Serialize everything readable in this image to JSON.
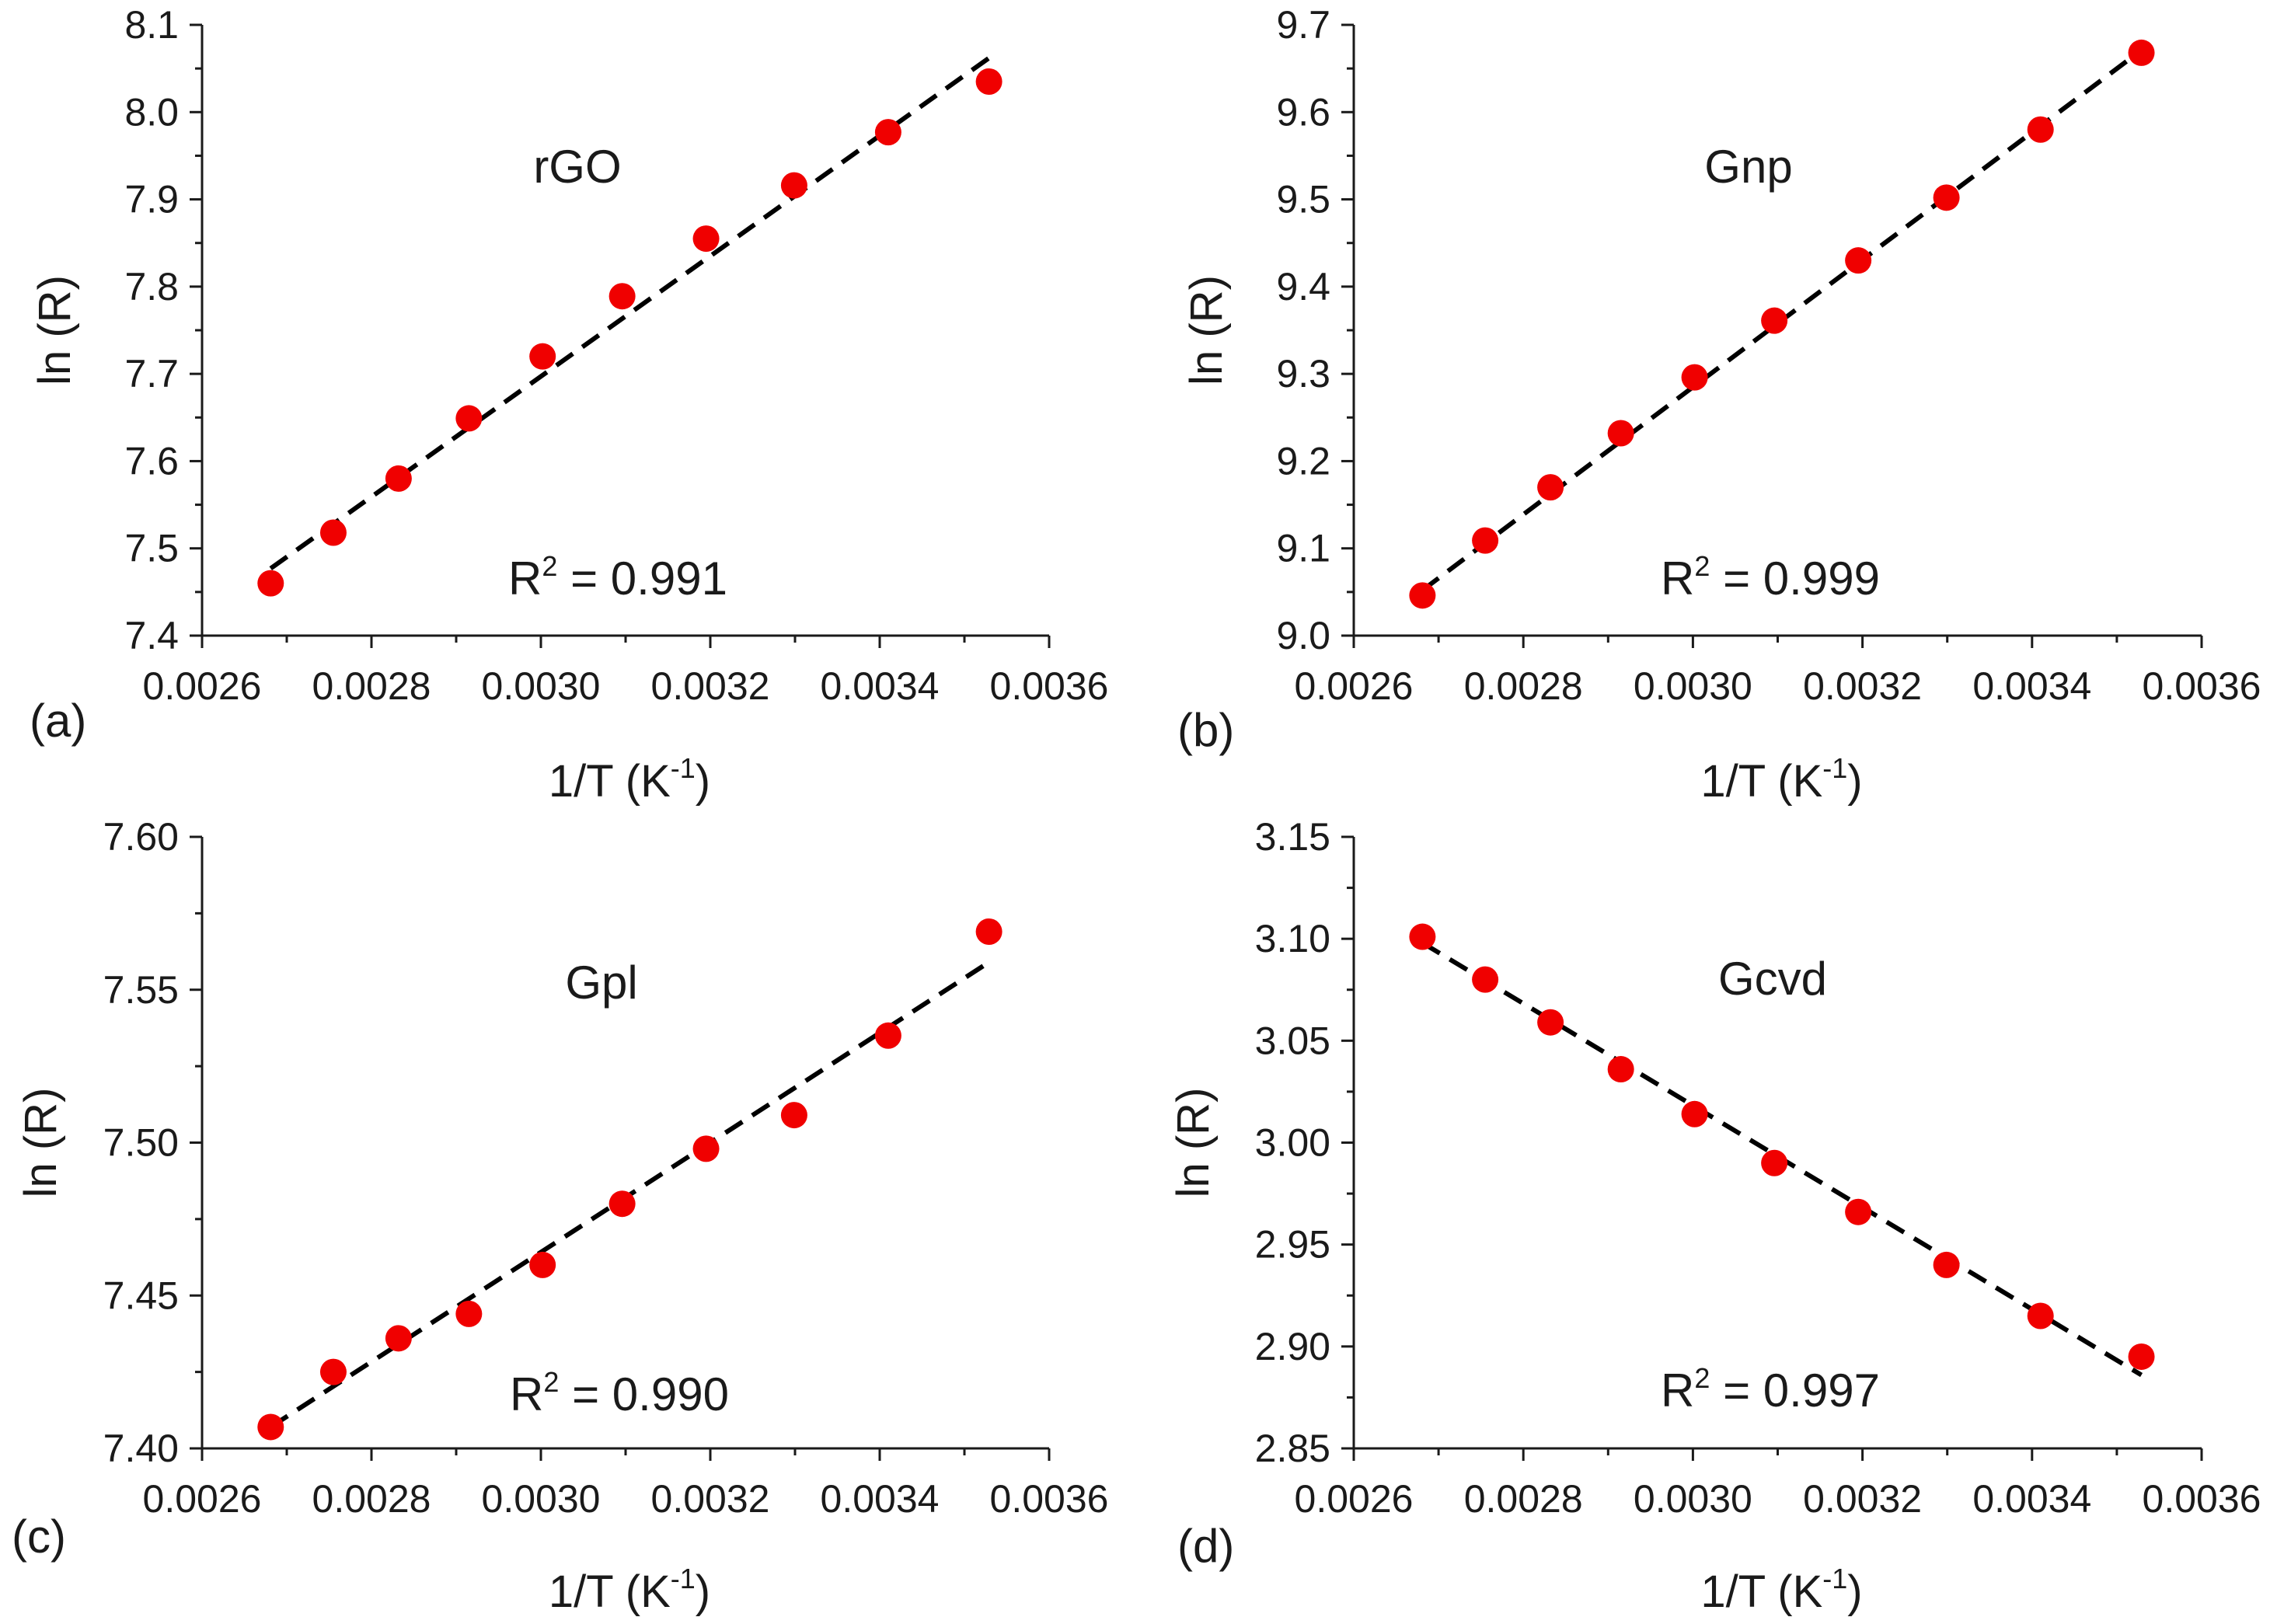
{
  "colors": {
    "point": "#f00000",
    "fit": "#000000",
    "axis": "#1a1a1a"
  },
  "chart_data": [
    {
      "type": "scatter",
      "panel": "(a)",
      "title": "rGO",
      "xlabel": "1/T (K",
      "xlabel_sup": "-1",
      "xlabel_end": ")",
      "ylabel": "ln (R)",
      "r2_prefix": "R",
      "r2_sup": "2",
      "r2_value": " = 0.991",
      "xlim": [
        0.0026,
        0.0036
      ],
      "ylim": [
        7.4,
        8.1
      ],
      "x_ticks": [
        "0.0026",
        "0.0028",
        "0.0030",
        "0.0032",
        "0.0034",
        "0.0036"
      ],
      "y_ticks": [
        "7.4",
        "7.5",
        "7.6",
        "7.7",
        "7.8",
        "7.9",
        "8.0",
        "8.1"
      ],
      "x": [
        0.002681,
        0.002755,
        0.002832,
        0.002915,
        0.003002,
        0.003096,
        0.003195,
        0.003299,
        0.00341,
        0.003529
      ],
      "y": [
        7.46,
        7.518,
        7.58,
        7.649,
        7.72,
        7.789,
        7.855,
        7.916,
        7.977,
        8.035
      ],
      "fit": {
        "x": [
          0.002681,
          0.003529
        ],
        "y": [
          7.477,
          8.062
        ]
      }
    },
    {
      "type": "scatter",
      "panel": "(b)",
      "title": "Gnp",
      "xlabel": "1/T (K",
      "xlabel_sup": "-1",
      "xlabel_end": ")",
      "ylabel": "ln (R)",
      "r2_prefix": "R",
      "r2_sup": "2",
      "r2_value": " = 0.999",
      "xlim": [
        0.0026,
        0.0036
      ],
      "ylim": [
        9.0,
        9.7
      ],
      "x_ticks": [
        "0.0026",
        "0.0028",
        "0.0030",
        "0.0032",
        "0.0034",
        "0.0036"
      ],
      "y_ticks": [
        "9.0",
        "9.1",
        "9.2",
        "9.3",
        "9.4",
        "9.5",
        "9.6",
        "9.7"
      ],
      "x": [
        0.002681,
        0.002755,
        0.002832,
        0.002915,
        0.003002,
        0.003096,
        0.003195,
        0.003299,
        0.00341,
        0.003529
      ],
      "y": [
        9.046,
        9.109,
        9.17,
        9.232,
        9.296,
        9.361,
        9.43,
        9.502,
        9.58,
        9.668
      ],
      "fit": {
        "x": [
          0.002681,
          0.003529
        ],
        "y": [
          9.052,
          9.671
        ]
      }
    },
    {
      "type": "scatter",
      "panel": "(c)",
      "title": "Gpl",
      "xlabel": "1/T (K",
      "xlabel_sup": "-1",
      "xlabel_end": ")",
      "ylabel": "ln (R)",
      "r2_prefix": "R",
      "r2_sup": "2",
      "r2_value": " = 0.990",
      "xlim": [
        0.0026,
        0.0036
      ],
      "ylim": [
        7.4,
        7.6
      ],
      "x_ticks": [
        "0.0026",
        "0.0028",
        "0.0030",
        "0.0032",
        "0.0034",
        "0.0036"
      ],
      "y_ticks": [
        "7.40",
        "7.45",
        "7.50",
        "7.55",
        "7.60"
      ],
      "x": [
        0.002681,
        0.002755,
        0.002832,
        0.002915,
        0.003002,
        0.003096,
        0.003195,
        0.003299,
        0.00341,
        0.003529
      ],
      "y": [
        7.407,
        7.425,
        7.436,
        7.444,
        7.46,
        7.48,
        7.498,
        7.509,
        7.535,
        7.569
      ],
      "fit": {
        "x": [
          0.002681,
          0.003529
        ],
        "y": [
          7.407,
          7.559
        ]
      }
    },
    {
      "type": "scatter",
      "panel": "(d)",
      "title": "Gcvd",
      "xlabel": "1/T (K",
      "xlabel_sup": "-1",
      "xlabel_end": ")",
      "ylabel": "ln (R)",
      "r2_prefix": "R",
      "r2_sup": "2",
      "r2_value": " = 0.997",
      "xlim": [
        0.0026,
        0.0036
      ],
      "ylim": [
        2.85,
        3.15
      ],
      "x_ticks": [
        "0.0026",
        "0.0028",
        "0.0030",
        "0.0032",
        "0.0034",
        "0.0036"
      ],
      "y_ticks": [
        "2.85",
        "2.90",
        "2.95",
        "3.00",
        "3.05",
        "3.10",
        "3.15"
      ],
      "x": [
        0.002681,
        0.002755,
        0.002832,
        0.002915,
        0.003002,
        0.003096,
        0.003195,
        0.003299,
        0.00341,
        0.003529
      ],
      "y": [
        3.101,
        3.08,
        3.059,
        3.036,
        3.014,
        2.99,
        2.966,
        2.94,
        2.915,
        2.895
      ],
      "fit": {
        "x": [
          0.002681,
          0.003529
        ],
        "y": [
          3.098,
          2.886
        ]
      }
    }
  ]
}
